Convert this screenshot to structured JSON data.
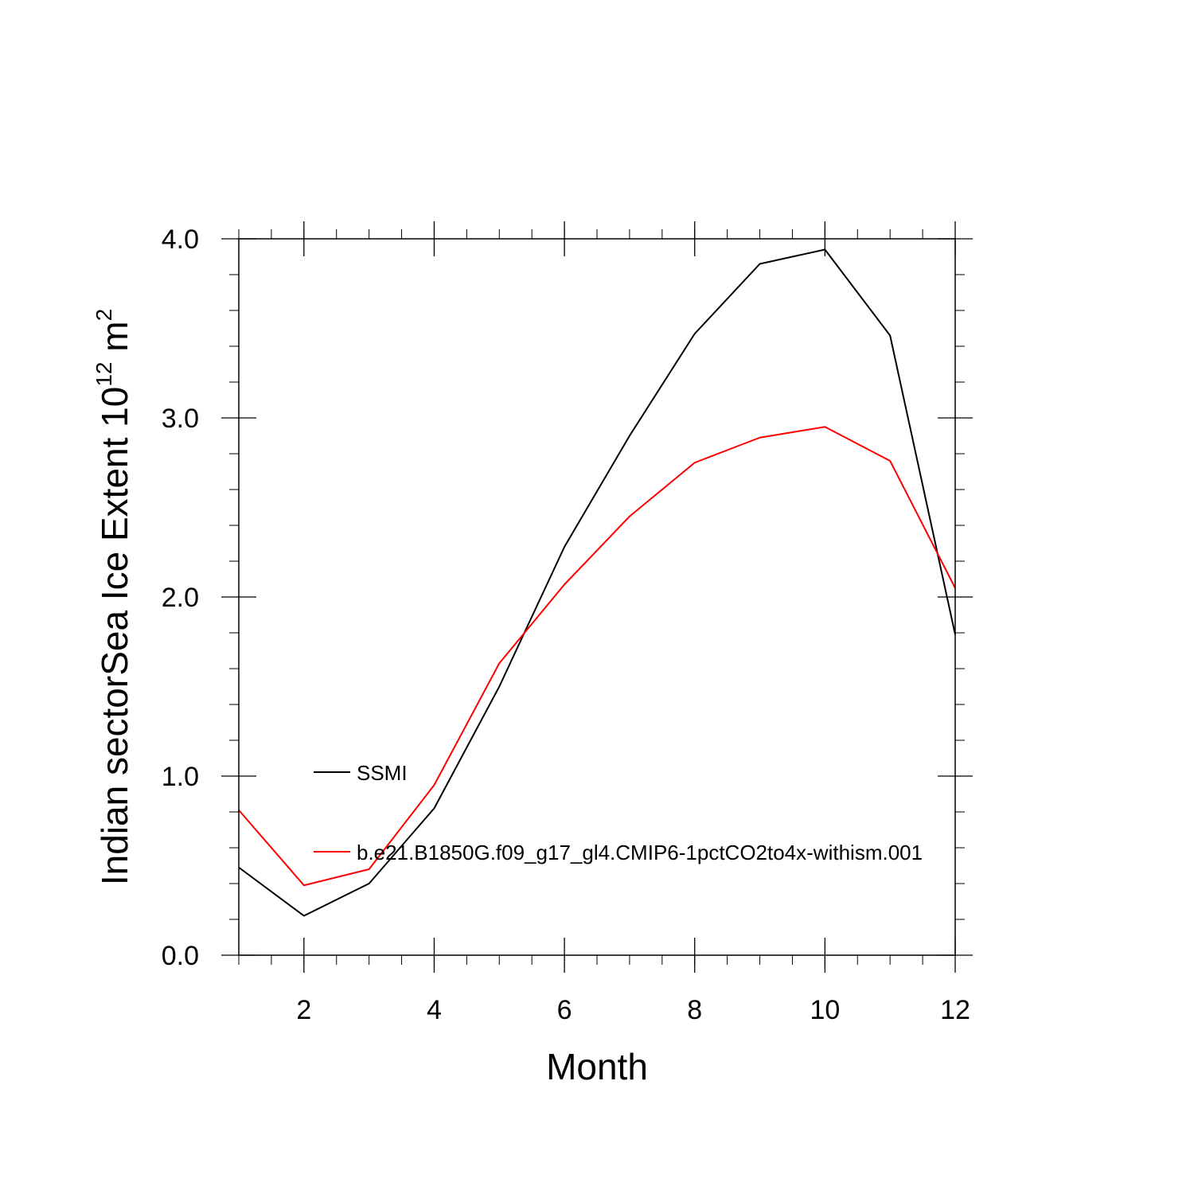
{
  "chart_data": {
    "type": "line",
    "xlabel": "Month",
    "ylabel": {
      "prefix": "Indian sectorSea Ice Extent 10",
      "exponent": "12",
      "unit": " m",
      "unit_exponent": "2"
    },
    "x": [
      1,
      2,
      3,
      4,
      5,
      6,
      7,
      8,
      9,
      10,
      11,
      12
    ],
    "xlim": [
      1,
      12
    ],
    "ylim": [
      0,
      4
    ],
    "x_ticks": [
      2,
      4,
      6,
      8,
      10,
      12
    ],
    "x_tick_labels": [
      "2",
      "4",
      "6",
      "8",
      "10",
      "12"
    ],
    "y_ticks": [
      0,
      1,
      2,
      3,
      4
    ],
    "y_tick_labels": [
      "0.0",
      "1.0",
      "2.0",
      "3.0",
      "4.0"
    ],
    "grid": false,
    "legend_position": "left-center",
    "series": [
      {
        "name": "SSMI",
        "color": "#000000",
        "values": [
          0.49,
          0.22,
          0.4,
          0.82,
          1.5,
          2.28,
          2.9,
          3.47,
          3.86,
          3.94,
          3.46,
          1.79
        ]
      },
      {
        "name": "b.e21.B1850G.f09_g17_gl4.CMIP6-1pctCO2to4x-withism.001",
        "color": "#ff0000",
        "values": [
          0.81,
          0.39,
          0.48,
          0.95,
          1.63,
          2.07,
          2.45,
          2.75,
          2.89,
          2.95,
          2.76,
          2.05
        ]
      }
    ]
  }
}
